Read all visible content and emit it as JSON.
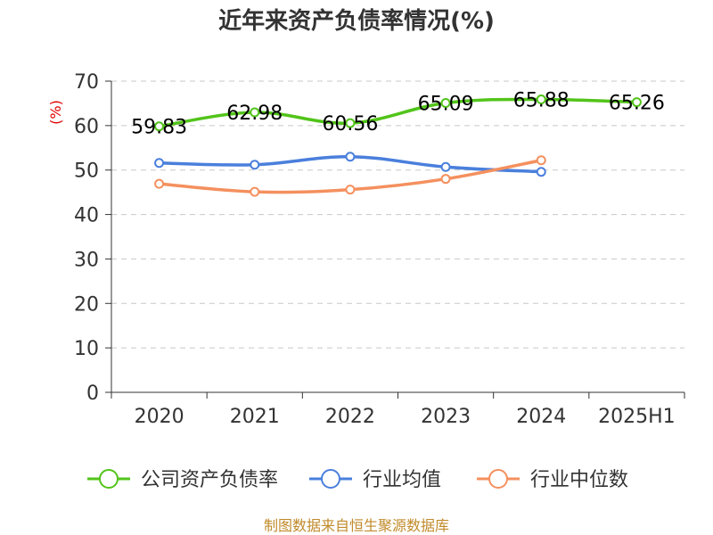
{
  "chart_data": {
    "type": "line",
    "title": "近年来资产负债率情况(%)",
    "ylabel": "(%)",
    "xlabel": "",
    "categories": [
      "2020",
      "2021",
      "2022",
      "2023",
      "2024",
      "2025H1"
    ],
    "ylim": [
      0,
      70
    ],
    "yticks": [
      0,
      10,
      20,
      30,
      40,
      50,
      60,
      70
    ],
    "grid": true,
    "legend_position": "bottom",
    "series": [
      {
        "name": "公司资产负债率",
        "color": "#52c41a",
        "values": [
          59.83,
          62.98,
          60.56,
          65.09,
          65.88,
          65.26
        ],
        "labels": [
          "59.83",
          "62.98",
          "60.56",
          "65.09",
          "65.88",
          "65.26"
        ]
      },
      {
        "name": "行业均值",
        "color": "#4a7fdc",
        "values": [
          51.6,
          51.2,
          53.0,
          50.7,
          49.6,
          null
        ]
      },
      {
        "name": "行业中位数",
        "color": "#f4905e",
        "values": [
          46.9,
          45.1,
          45.6,
          48.0,
          52.2,
          null
        ]
      }
    ],
    "source": "制图数据来自恒生聚源数据库"
  }
}
